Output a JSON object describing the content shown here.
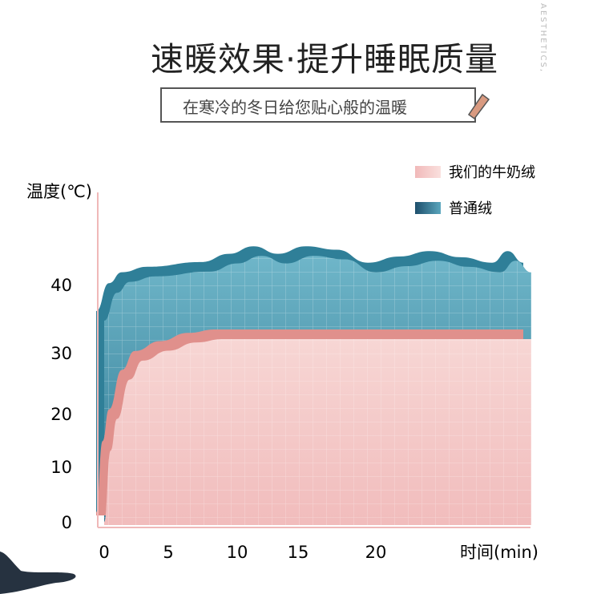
{
  "header": {
    "title": "速暖效果·提升睡眠质量",
    "subtitle": "在寒冷的冬日给您贴心般的温暖",
    "watermark": "AESTHETICS,"
  },
  "chart_data": {
    "type": "area",
    "title": "速暖效果·提升睡眠质量",
    "xlabel": "时间(min)",
    "ylabel": "温度(℃)",
    "x_ticks": [
      0,
      5,
      10,
      15,
      20
    ],
    "y_ticks": [
      0,
      10,
      20,
      30,
      40
    ],
    "grid": true,
    "legend_placement": "top-right",
    "series": [
      {
        "name": "我们的牛奶绒",
        "color": "#f4c4c4",
        "edge_color": "#e0908c",
        "x": [
          0,
          0.5,
          1,
          2,
          3,
          5,
          7,
          9,
          10,
          15,
          20,
          25,
          30
        ],
        "values": [
          0,
          13,
          19,
          25.6,
          28.7,
          30.3,
          31.5,
          32,
          32,
          32,
          32,
          32,
          32
        ]
      },
      {
        "name": "普通绒",
        "color": "#5aa6bd",
        "edge_color": "#2f7f98",
        "x": [
          0,
          1,
          2,
          4,
          8,
          10,
          12,
          14,
          16,
          18,
          20,
          22,
          24,
          26,
          28,
          29,
          30
        ],
        "values": [
          34.7,
          38.8,
          40.4,
          41.2,
          41.9,
          43.1,
          44.2,
          43.1,
          44.2,
          43.7,
          41.8,
          42.7,
          43.5,
          42.6,
          41.8,
          43.5,
          41.8
        ]
      }
    ]
  }
}
